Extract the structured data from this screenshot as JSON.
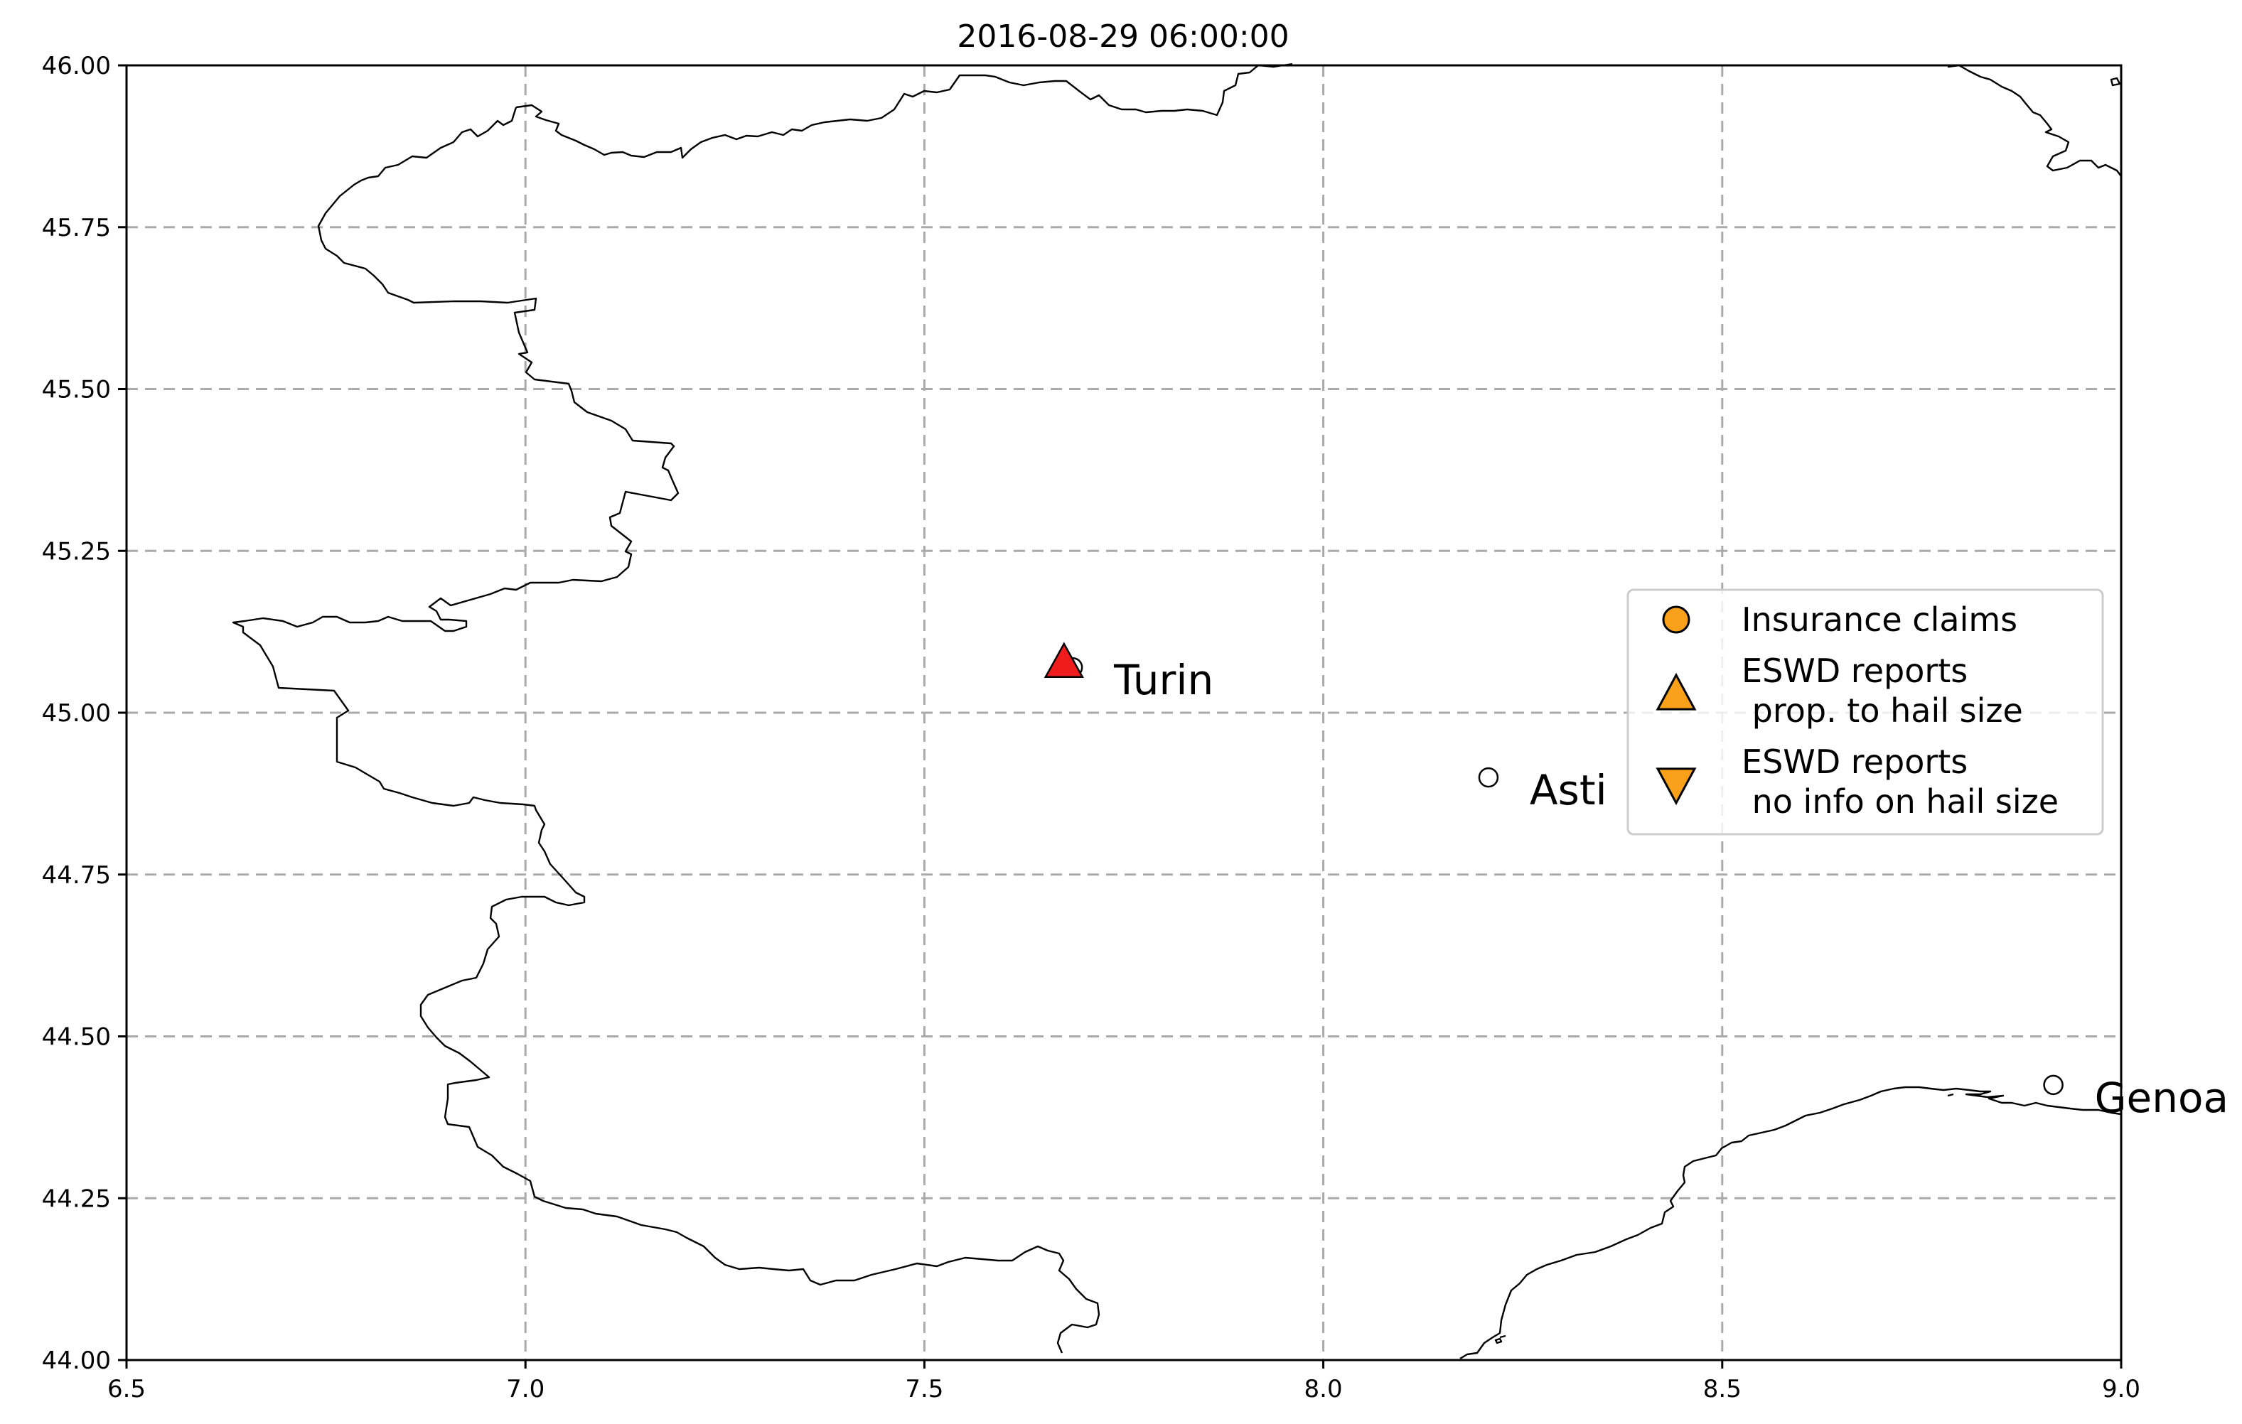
{
  "title": "2016-08-29 06:00:00",
  "map": {
    "lon_range": [
      6.5,
      9.0
    ],
    "lat_range": [
      44.0,
      46.0
    ],
    "x_ticks": [
      {
        "value": 6.5,
        "label": "6.5"
      },
      {
        "value": 7.0,
        "label": "7.0"
      },
      {
        "value": 7.5,
        "label": "7.5"
      },
      {
        "value": 8.0,
        "label": "8.0"
      },
      {
        "value": 8.5,
        "label": "8.5"
      },
      {
        "value": 9.0,
        "label": "9.0"
      }
    ],
    "y_ticks": [
      {
        "value": 44.0,
        "label": "44.00"
      },
      {
        "value": 44.25,
        "label": "44.25"
      },
      {
        "value": 44.5,
        "label": "44.50"
      },
      {
        "value": 44.75,
        "label": "44.75"
      },
      {
        "value": 45.0,
        "label": "45.00"
      },
      {
        "value": 45.25,
        "label": "45.25"
      },
      {
        "value": 45.5,
        "label": "45.50"
      },
      {
        "value": 45.75,
        "label": "45.75"
      },
      {
        "value": 46.0,
        "label": "46.00"
      }
    ],
    "grid": true,
    "cities": [
      {
        "name": "Turin",
        "lon": 7.686,
        "lat": 45.07
      },
      {
        "name": "Asti",
        "lon": 8.207,
        "lat": 44.9
      },
      {
        "name": "Genoa",
        "lon": 8.915,
        "lat": 44.425
      }
    ],
    "eswd_reports": [
      {
        "lon": 7.675,
        "lat": 45.078,
        "marker": "triangle-up",
        "color": "#ee1c1c"
      }
    ],
    "colors": {
      "orange_marker": "#f9a11b",
      "eswd_red": "#ee1c1c",
      "grid": "#aaaaaa"
    }
  },
  "legend": {
    "position": "center-right",
    "items": [
      {
        "marker": "circle",
        "lines": [
          "Insurance claims"
        ]
      },
      {
        "marker": "triangle-up",
        "lines": [
          "ESWD reports",
          " prop. to hail size"
        ]
      },
      {
        "marker": "triangle-down",
        "lines": [
          "ESWD reports",
          " no info on hail size"
        ]
      }
    ]
  }
}
